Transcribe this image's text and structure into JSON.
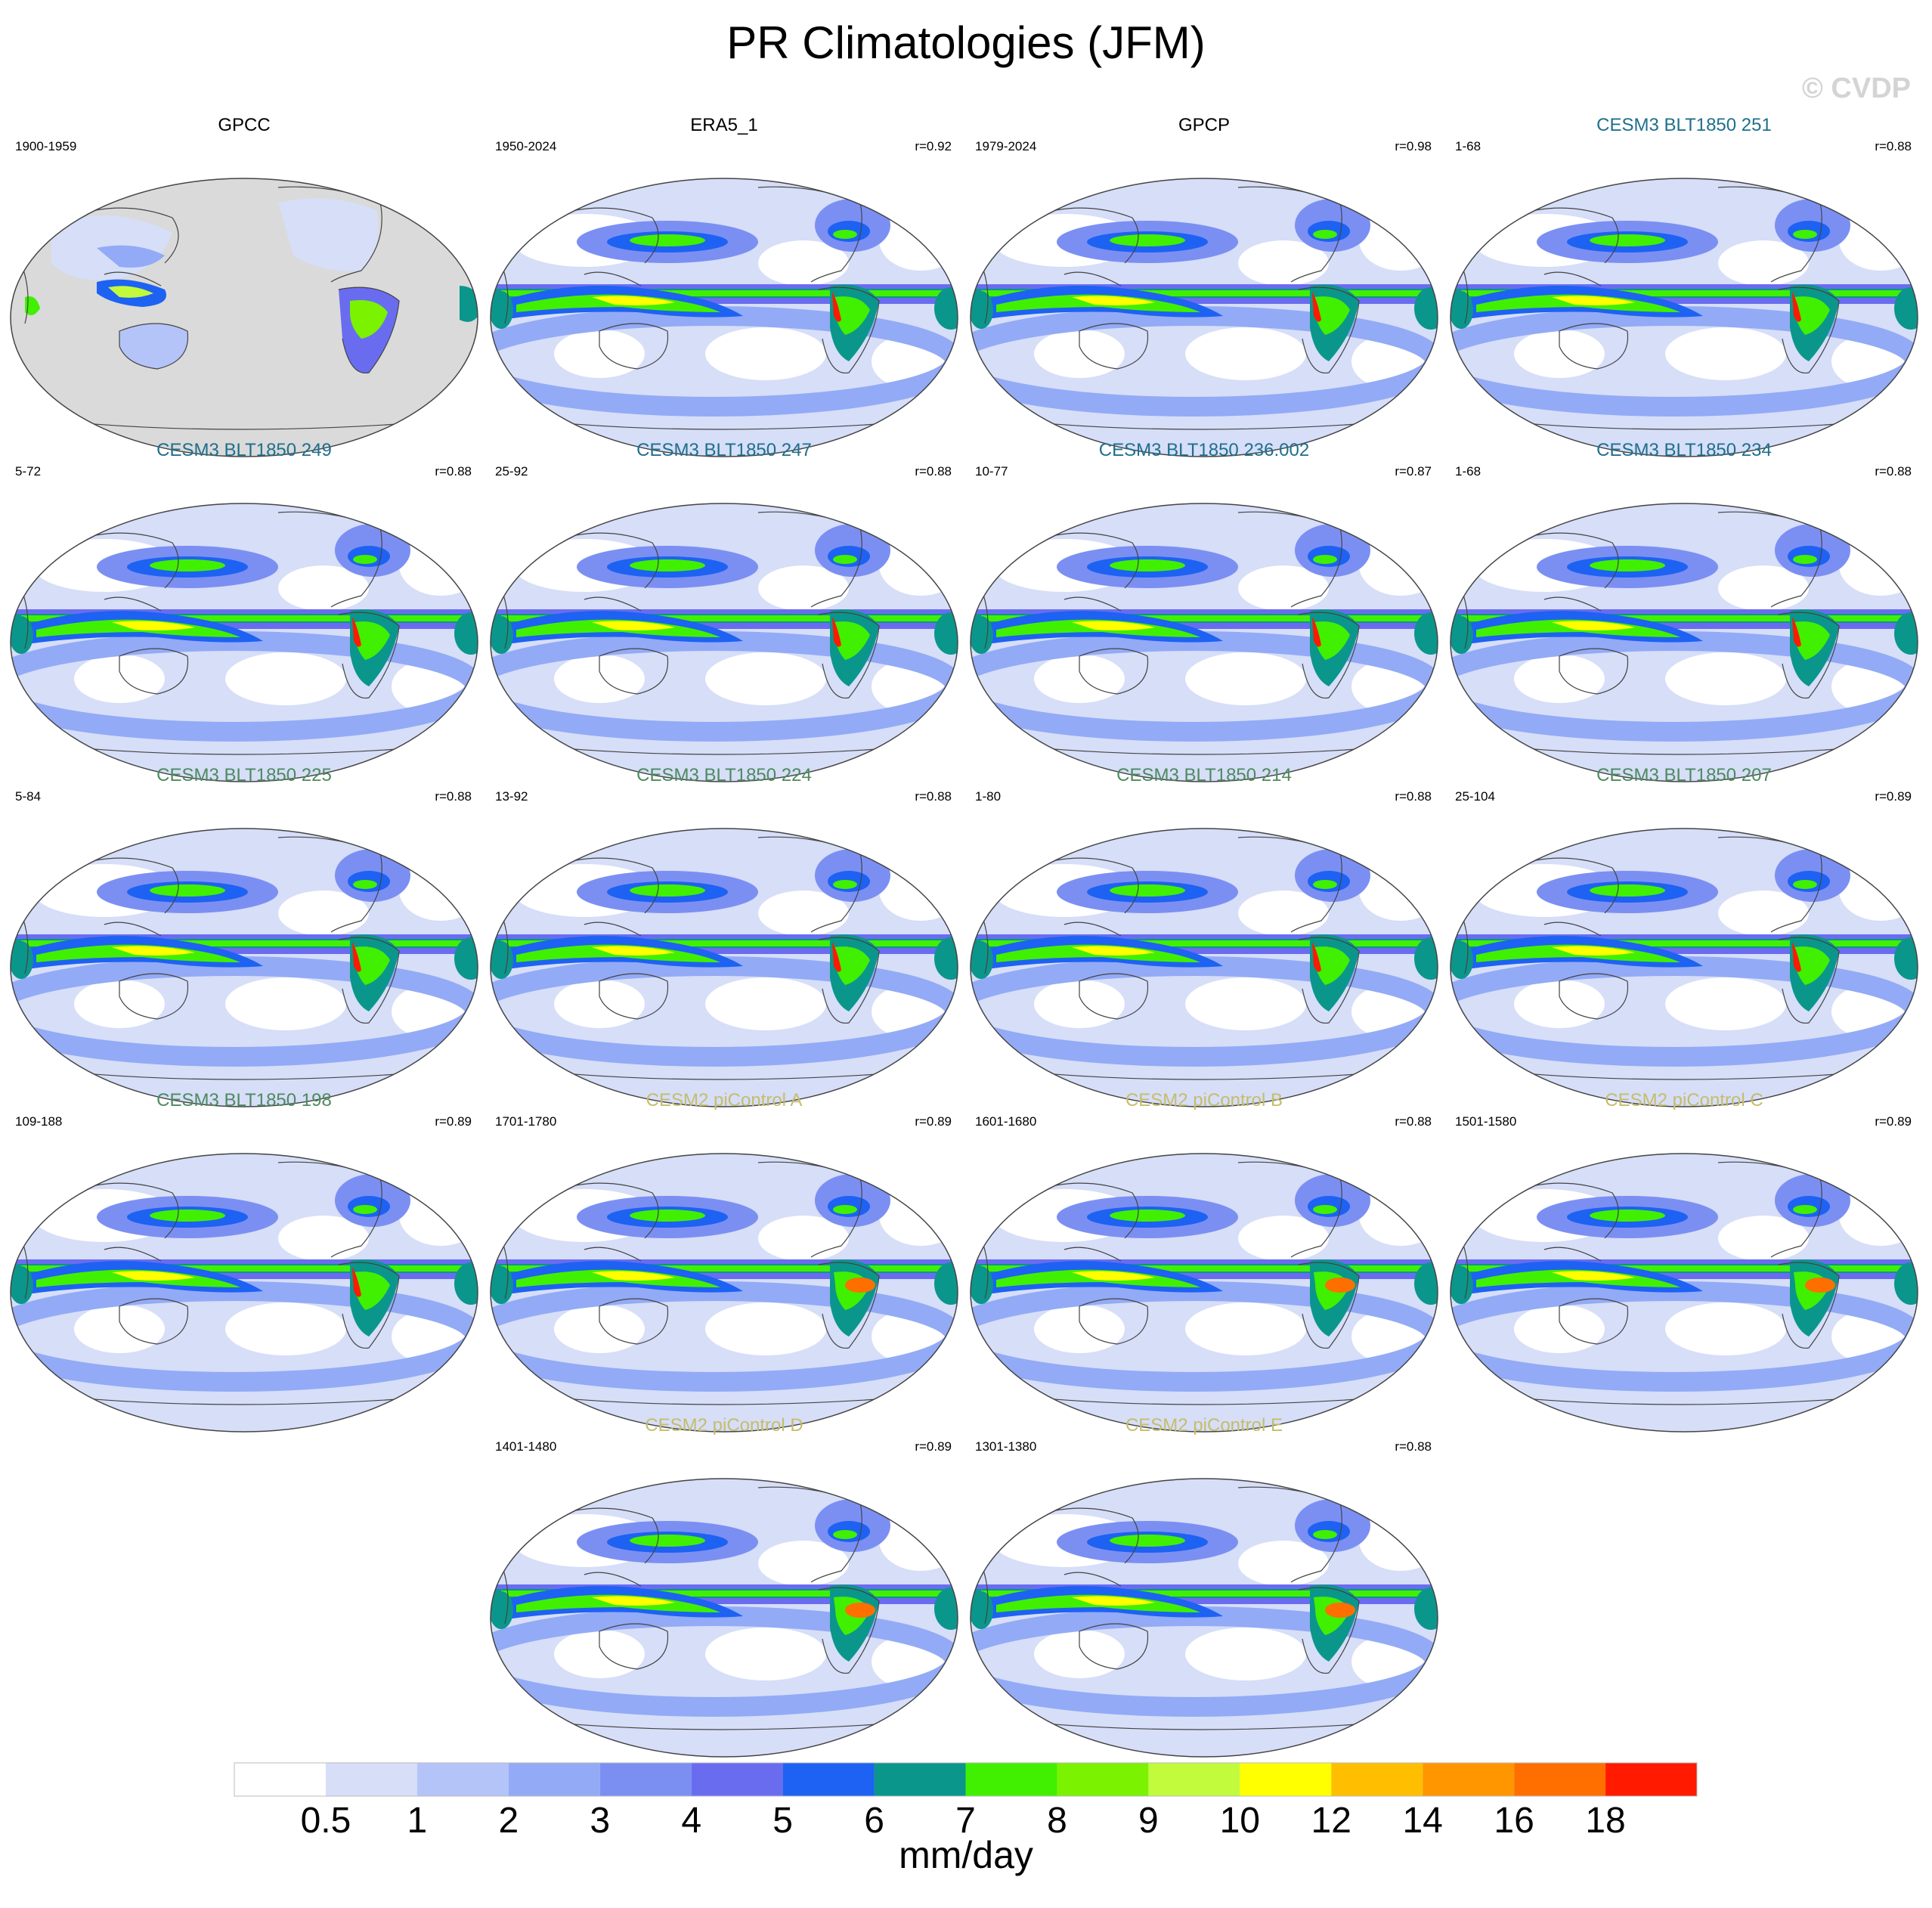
{
  "figure": {
    "title": "PR Climatologies (JFM)",
    "watermark": "© CVDP"
  },
  "panels": [
    {
      "title": "GPCC",
      "years": "1900-1959",
      "r": "",
      "title_color": "#000000",
      "style": "obs-land"
    },
    {
      "title": "ERA5_1",
      "years": "1950-2024",
      "r": "r=0.92",
      "title_color": "#000000",
      "style": "obs"
    },
    {
      "title": "GPCP",
      "years": "1979-2024",
      "r": "r=0.98",
      "title_color": "#000000",
      "style": "obs"
    },
    {
      "title": "CESM3 BLT1850 251",
      "years": "1-68",
      "r": "r=0.88",
      "title_color": "#1f6f8b",
      "style": "model"
    },
    {
      "title": "CESM3 BLT1850 249",
      "years": "5-72",
      "r": "r=0.88",
      "title_color": "#1f6f8b",
      "style": "model"
    },
    {
      "title": "CESM3 BLT1850 247",
      "years": "25-92",
      "r": "r=0.88",
      "title_color": "#1f6f8b",
      "style": "model"
    },
    {
      "title": "CESM3 BLT1850 236.002",
      "years": "10-77",
      "r": "r=0.87",
      "title_color": "#1f6f8b",
      "style": "model"
    },
    {
      "title": "CESM3 BLT1850 234",
      "years": "1-68",
      "r": "r=0.88",
      "title_color": "#1f6f8b",
      "style": "model"
    },
    {
      "title": "CESM3 BLT1850 225",
      "years": "5-84",
      "r": "r=0.88",
      "title_color": "#4e8a5e",
      "style": "model"
    },
    {
      "title": "CESM3 BLT1850 224",
      "years": "13-92",
      "r": "r=0.88",
      "title_color": "#4e8a5e",
      "style": "model"
    },
    {
      "title": "CESM3 BLT1850 214",
      "years": "1-80",
      "r": "r=0.88",
      "title_color": "#4e8a5e",
      "style": "model"
    },
    {
      "title": "CESM3 BLT1850 207",
      "years": "25-104",
      "r": "r=0.89",
      "title_color": "#4e8a5e",
      "style": "model"
    },
    {
      "title": "CESM3 BLT1850 198",
      "years": "109-188",
      "r": "r=0.89",
      "title_color": "#4e8a5e",
      "style": "model"
    },
    {
      "title": "CESM2 piControl A",
      "years": "1701-1780",
      "r": "r=0.89",
      "title_color": "#c6bd6a",
      "style": "cesm2"
    },
    {
      "title": "CESM2 piControl B",
      "years": "1601-1680",
      "r": "r=0.88",
      "title_color": "#c6bd6a",
      "style": "cesm2"
    },
    {
      "title": "CESM2 piControl C",
      "years": "1501-1580",
      "r": "r=0.89",
      "title_color": "#c6bd6a",
      "style": "cesm2"
    },
    {
      "title": "CESM2 piControl D",
      "years": "1401-1480",
      "r": "r=0.89",
      "title_color": "#c6bd6a",
      "style": "cesm2"
    },
    {
      "title": "CESM2 piControl E",
      "years": "1301-1380",
      "r": "r=0.88",
      "title_color": "#c6bd6a",
      "style": "cesm2"
    }
  ],
  "colorbar": {
    "labels": [
      "0.5",
      "1",
      "2",
      "3",
      "4",
      "5",
      "6",
      "7",
      "8",
      "9",
      "10",
      "12",
      "14",
      "16",
      "18"
    ],
    "colors": [
      "#ffffff",
      "#d6def8",
      "#b4c4f8",
      "#93aaf6",
      "#7b8ff3",
      "#6a6cf0",
      "#1d62f2",
      "#0b968c",
      "#40f000",
      "#7af200",
      "#c2fa3c",
      "#ffff00",
      "#ffbf00",
      "#ff9600",
      "#ff6f00",
      "#ff1a00"
    ],
    "units": "mm/day"
  }
}
